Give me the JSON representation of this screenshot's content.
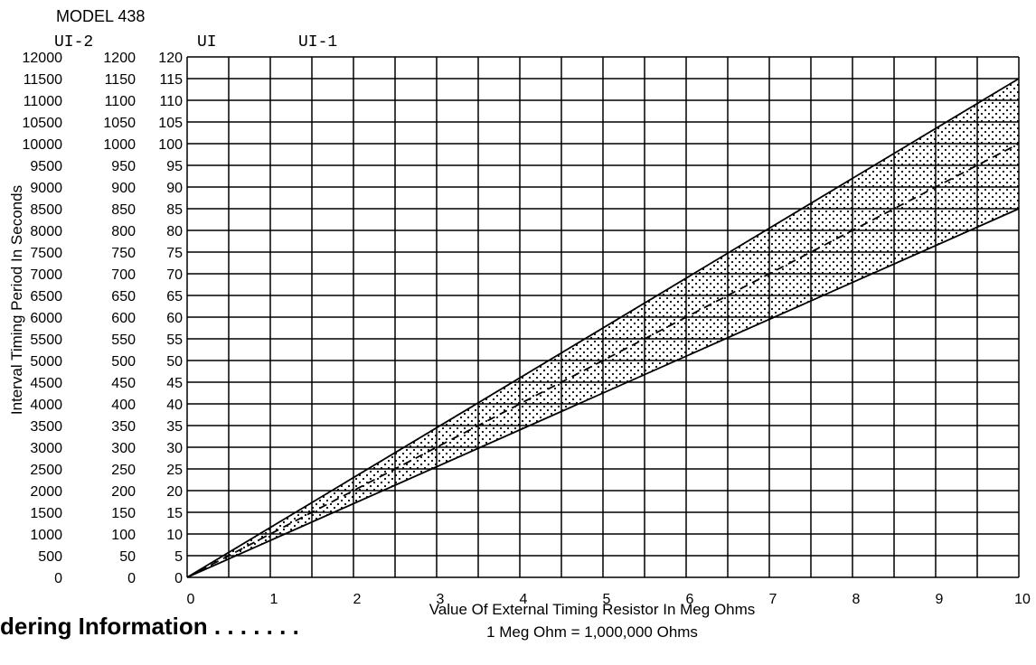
{
  "header": {
    "model": "MODEL 438"
  },
  "footer": {
    "section_heading": "dering Information . . . . . . ."
  },
  "chart_data": {
    "type": "line",
    "title": "",
    "xlabel": "Value Of External Timing Resistor In Meg Ohms",
    "xlabel_note": "1 Meg Ohm = 1,000,000 Ohms",
    "ylabel": "Interval Timing Period In Seconds",
    "xlim": [
      0,
      10
    ],
    "ylim": [
      0,
      120
    ],
    "x_ticks": [
      "0",
      "1",
      "2",
      "3",
      "4",
      "5",
      "6",
      "7",
      "8",
      "9",
      "10"
    ],
    "y_axes": [
      {
        "name": "UI-2",
        "ticks": [
          "0",
          "500",
          "1000",
          "1500",
          "2000",
          "2500",
          "3000",
          "3500",
          "4000",
          "4500",
          "5000",
          "5500",
          "6000",
          "6500",
          "7000",
          "7500",
          "8000",
          "8500",
          "9000",
          "9500",
          "10000",
          "10500",
          "11000",
          "11500",
          "12000"
        ]
      },
      {
        "name": "UI",
        "ticks": [
          "0",
          "50",
          "100",
          "150",
          "200",
          "250",
          "300",
          "350",
          "400",
          "450",
          "500",
          "550",
          "600",
          "650",
          "700",
          "750",
          "800",
          "850",
          "900",
          "950",
          "1000",
          "1050",
          "1100",
          "1150",
          "1200"
        ]
      },
      {
        "name": "UI-1",
        "ticks": [
          "0",
          "5",
          "10",
          "15",
          "20",
          "25",
          "30",
          "35",
          "40",
          "45",
          "50",
          "55",
          "60",
          "65",
          "70",
          "75",
          "80",
          "85",
          "90",
          "95",
          "100",
          "105",
          "110",
          "115",
          "120"
        ]
      }
    ],
    "grid": true,
    "series": [
      {
        "style": "solid",
        "x": [
          0,
          10
        ],
        "y": [
          0,
          115
        ]
      },
      {
        "style": "dashed",
        "x": [
          0,
          10
        ],
        "y": [
          0,
          100
        ]
      },
      {
        "style": "solid",
        "x": [
          0,
          10
        ],
        "y": [
          0,
          85
        ]
      }
    ],
    "shaded_band": {
      "fill": "dotted",
      "between": [
        "upper",
        "lower"
      ]
    }
  }
}
